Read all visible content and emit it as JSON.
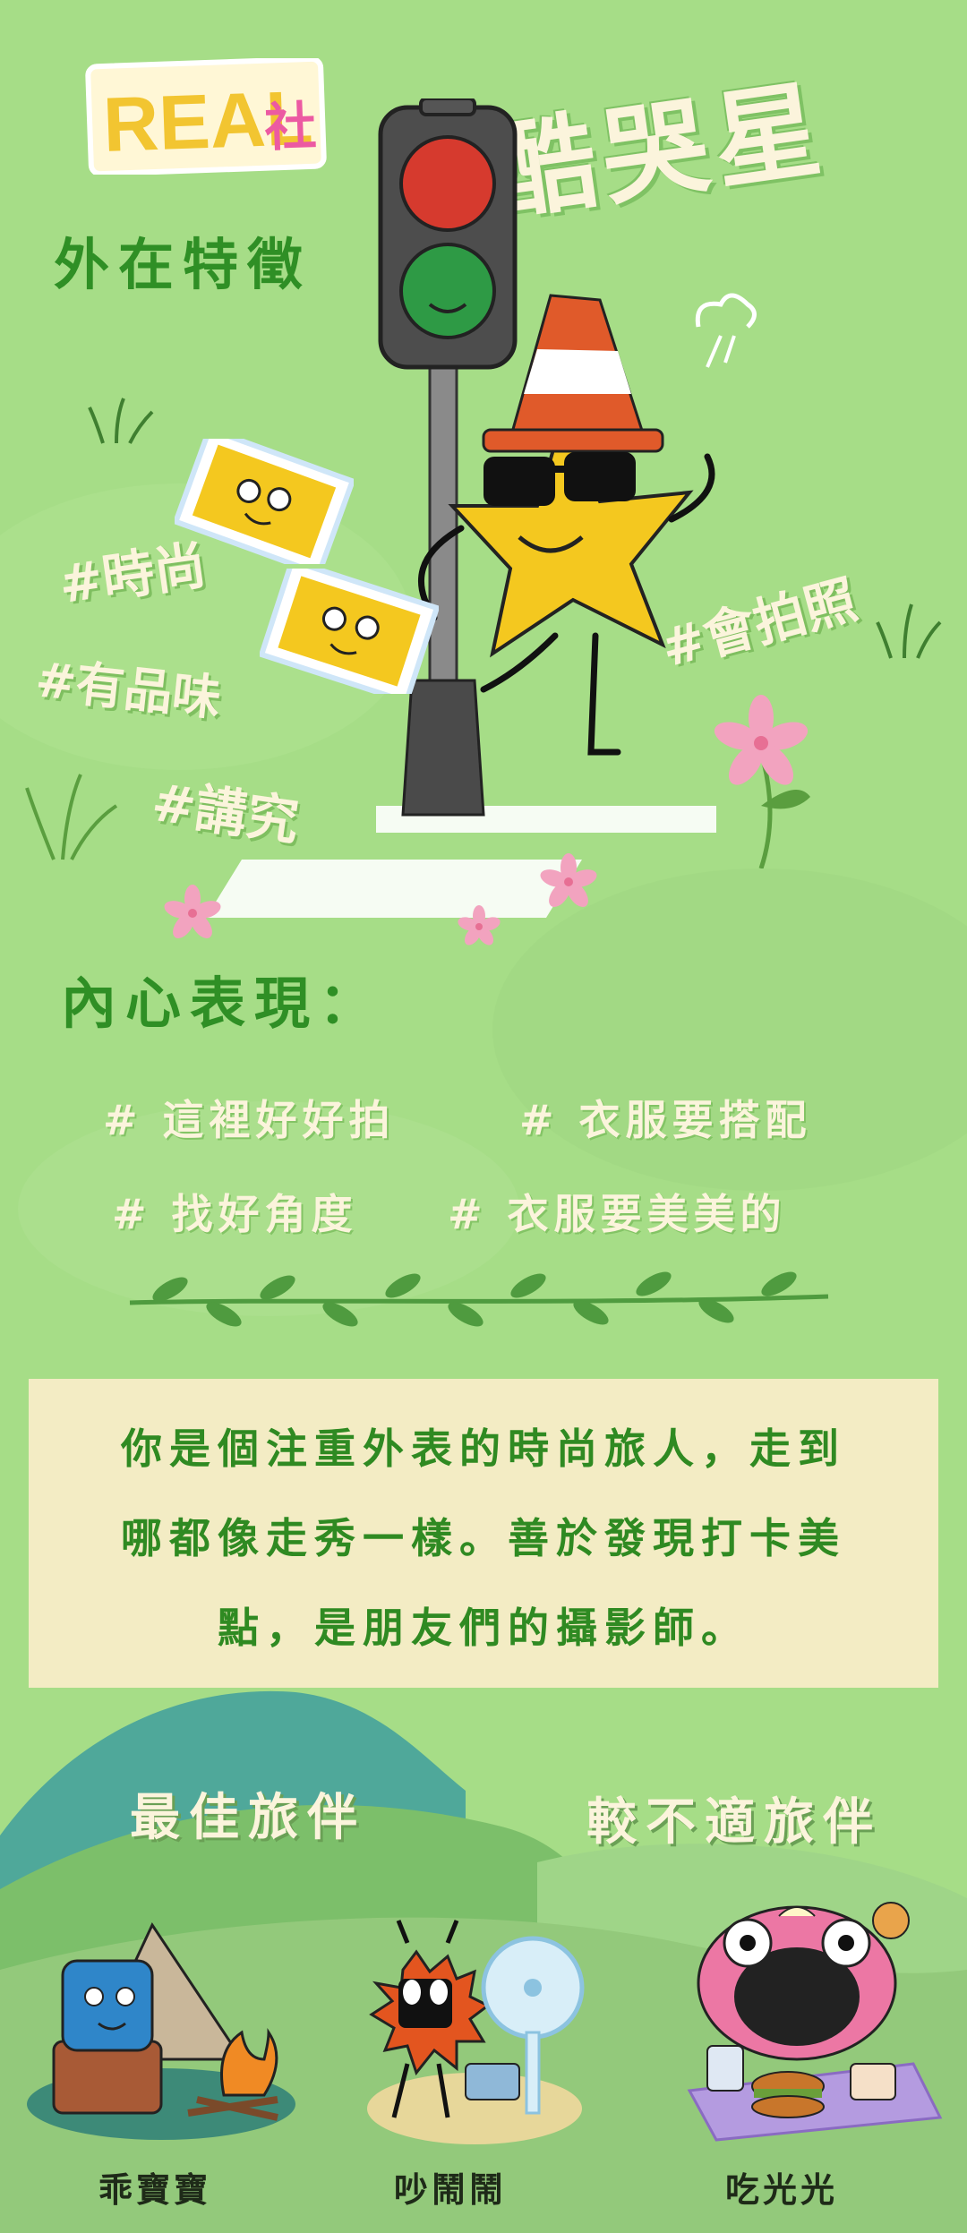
{
  "logo": {
    "text": "REAL",
    "suffix": "社"
  },
  "title": "酷哭星",
  "section_appearance": {
    "heading": "外在特徵",
    "tags": [
      "#時尚",
      "#有品味",
      "#講究",
      "#會拍照"
    ]
  },
  "section_inner": {
    "heading": "內心表現：",
    "tags_row1": [
      "# 這裡好好拍",
      "# 衣服要搭配"
    ],
    "tags_row2": [
      "# 找好角度",
      "# 衣服要美美的"
    ]
  },
  "description": {
    "line1": "你是個注重外表的時尚旅人，走到",
    "line2": "哪都像走秀一樣。善於發現打卡美",
    "line3": "點，是朋友們的攝影師。"
  },
  "companions": {
    "best_heading": "最佳旅伴",
    "worst_heading": "較不適旅伴",
    "characters": [
      {
        "name": "乖寶寶",
        "icon": "blue-cube-character-icon"
      },
      {
        "name": "吵鬧鬧",
        "icon": "orange-spiky-character-icon"
      },
      {
        "name": "吃光光",
        "icon": "pink-eating-character-icon"
      }
    ]
  },
  "colors": {
    "background": "#a6dd87",
    "heading_green": "#2f8f25",
    "cream": "#fbf4dc",
    "box": "#f3ecc4",
    "leaf": "#4f9b3f"
  }
}
